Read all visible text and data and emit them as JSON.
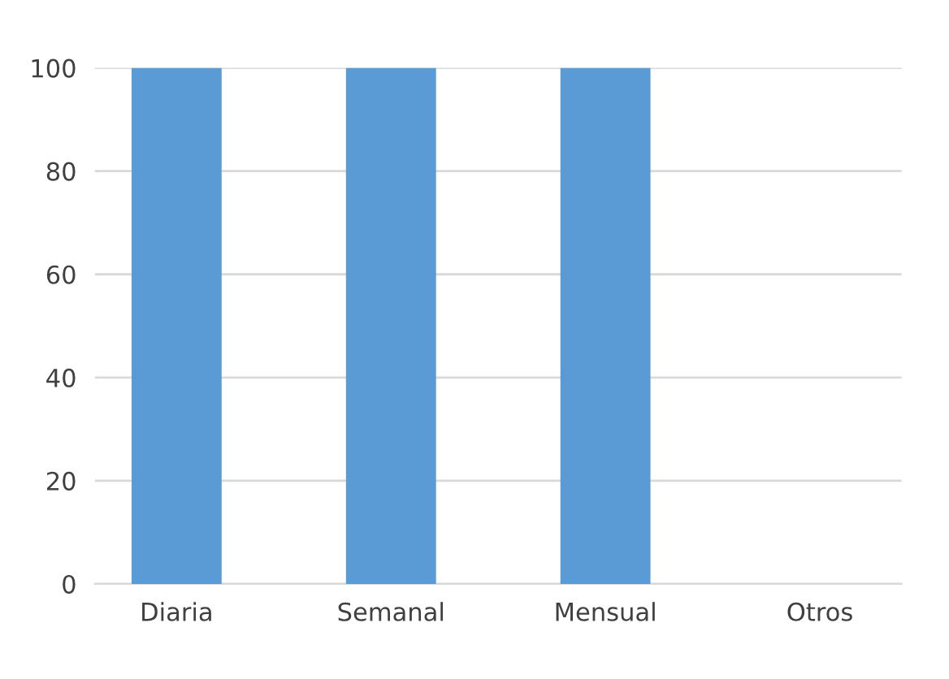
{
  "chart_data": {
    "type": "bar",
    "categories": [
      "Diaria",
      "Semanal",
      "Mensual",
      "Otros"
    ],
    "values": [
      100,
      100,
      100,
      0
    ],
    "color": "#5b9bd5",
    "ylim": [
      0,
      100
    ],
    "yticks": [
      0,
      20,
      40,
      60,
      80,
      100
    ],
    "grid": "y"
  }
}
